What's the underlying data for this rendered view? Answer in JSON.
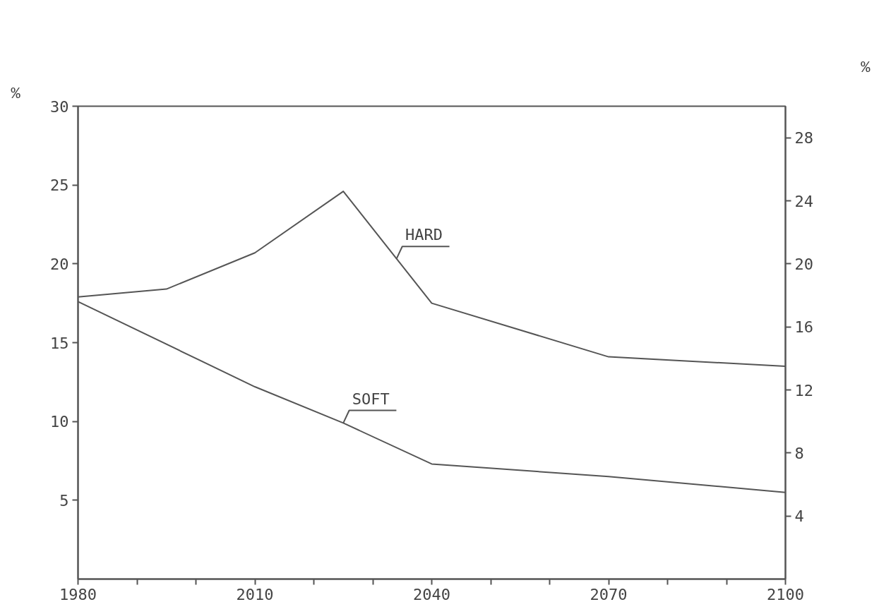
{
  "chart_data": {
    "type": "line",
    "ylabel": "%",
    "y2label": "%",
    "x": [
      1980,
      1995,
      2010,
      2025,
      2040,
      2070,
      2100
    ],
    "series": [
      {
        "color": "#555555",
        "values": [
          17.9,
          18.4,
          20.7,
          24.6,
          17.5,
          14.1,
          13.5
        ]
      },
      {
        "color": "#555555",
        "values": [
          17.6,
          null,
          12.2,
          9.9,
          7.3,
          6.5,
          5.5
        ]
      }
    ],
    "annotations": [
      {
        "text": "HARD",
        "x": 2034,
        "y": 20.3
      },
      {
        "text": "SOFT",
        "x": 2025,
        "y": 9.9
      }
    ],
    "xlim": [
      1980,
      2100
    ],
    "xticks": [
      1980,
      {
        "value": 1990,
        "label": null
      },
      {
        "value": 2000,
        "label": null
      },
      2010,
      {
        "value": 2020,
        "label": null
      },
      {
        "value": 2030,
        "label": null
      },
      2040,
      {
        "value": 2050,
        "label": null
      },
      {
        "value": 2060,
        "label": null
      },
      2070,
      {
        "value": 2080,
        "label": null
      },
      {
        "value": 2090,
        "label": null
      },
      2100
    ],
    "ylim": [
      0,
      30
    ],
    "yticks": [
      5,
      10,
      15,
      20,
      25,
      30
    ],
    "y2lim": [
      0,
      30
    ],
    "y2ticks": [
      4,
      8,
      12,
      16,
      20,
      24,
      28
    ],
    "grid": false,
    "marker": "none",
    "line_style": "solid"
  }
}
